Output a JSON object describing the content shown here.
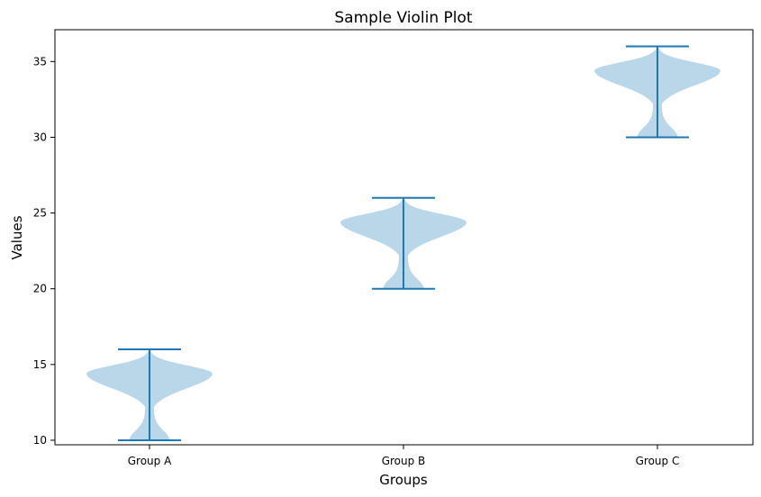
{
  "chart_data": {
    "type": "violin",
    "title": "Sample Violin Plot",
    "xlabel": "Groups",
    "ylabel": "Values",
    "categories": [
      "Group A",
      "Group B",
      "Group C"
    ],
    "ylim": [
      9.7,
      37.1
    ],
    "yticks": [
      10,
      15,
      20,
      25,
      30,
      35
    ],
    "groups": [
      {
        "name": "Group A",
        "min": 10,
        "max": 16,
        "density_peak": 14.4
      },
      {
        "name": "Group B",
        "min": 20,
        "max": 26,
        "density_peak": 24.4
      },
      {
        "name": "Group C",
        "min": 30,
        "max": 36,
        "density_peak": 34.4
      }
    ],
    "colors": {
      "body": "#bad6e9",
      "lines": "#1f77b4"
    },
    "grid": false
  }
}
